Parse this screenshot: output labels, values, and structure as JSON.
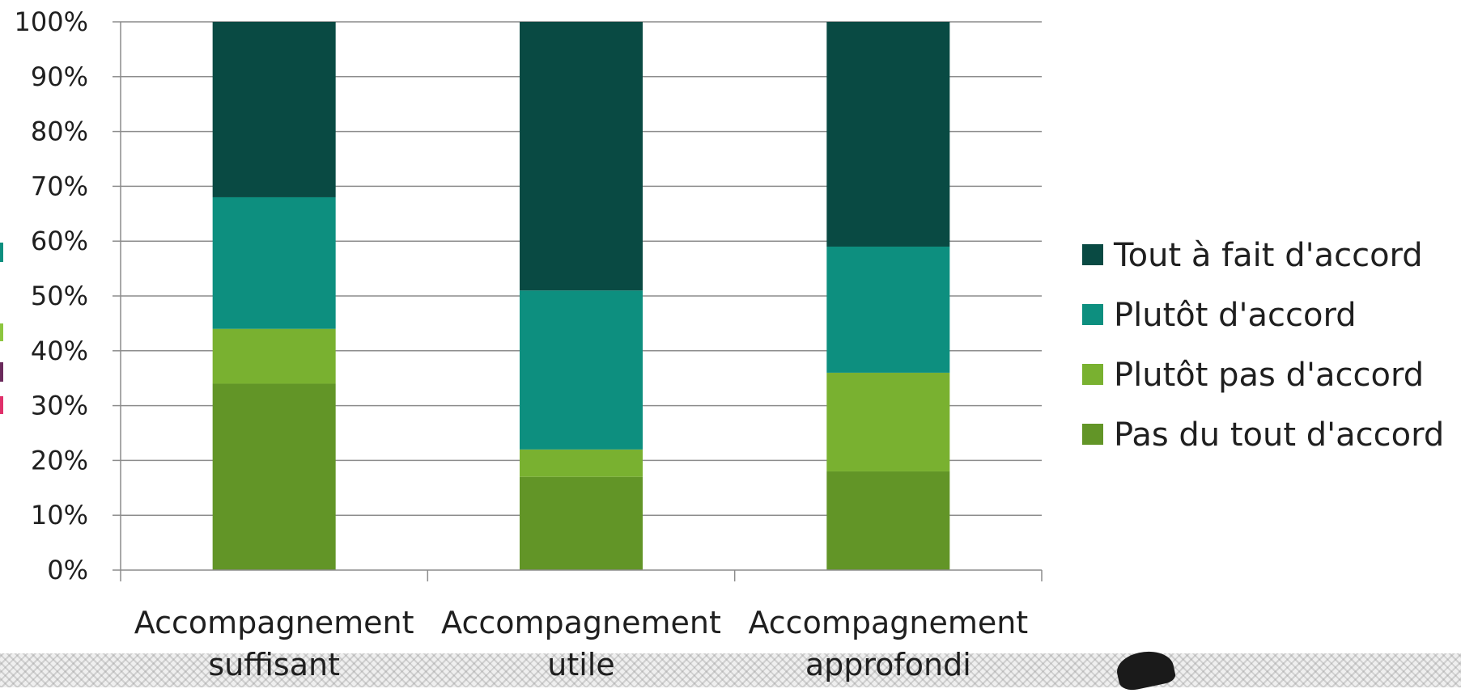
{
  "chart_data": {
    "type": "bar",
    "stacked": true,
    "title": "",
    "xlabel": "",
    "ylabel": "",
    "ylim": [
      0,
      100
    ],
    "y_ticks": [
      "0%",
      "10%",
      "20%",
      "30%",
      "40%",
      "50%",
      "60%",
      "70%",
      "80%",
      "90%",
      "100%"
    ],
    "grid": true,
    "legend_position": "right",
    "categories": [
      [
        "Accompagnement",
        "suffisant"
      ],
      [
        "Accompagnement",
        "utile"
      ],
      [
        "Accompagnement",
        "approfondi"
      ]
    ],
    "series": [
      {
        "name": "Pas du tout d'accord",
        "color": "#629527",
        "values": [
          34,
          17,
          18
        ]
      },
      {
        "name": "Plutôt pas d'accord",
        "color": "#79b130",
        "values": [
          10,
          5,
          18
        ]
      },
      {
        "name": "Plutôt d'accord",
        "color": "#0d8f7f",
        "values": [
          24,
          29,
          23
        ]
      },
      {
        "name": "Tout à fait d'accord",
        "color": "#094a43",
        "values": [
          32,
          49,
          41
        ]
      }
    ],
    "legend_order": [
      "Tout à fait d'accord",
      "Plutôt d'accord",
      "Plutôt pas d'accord",
      "Pas du tout d'accord"
    ]
  }
}
